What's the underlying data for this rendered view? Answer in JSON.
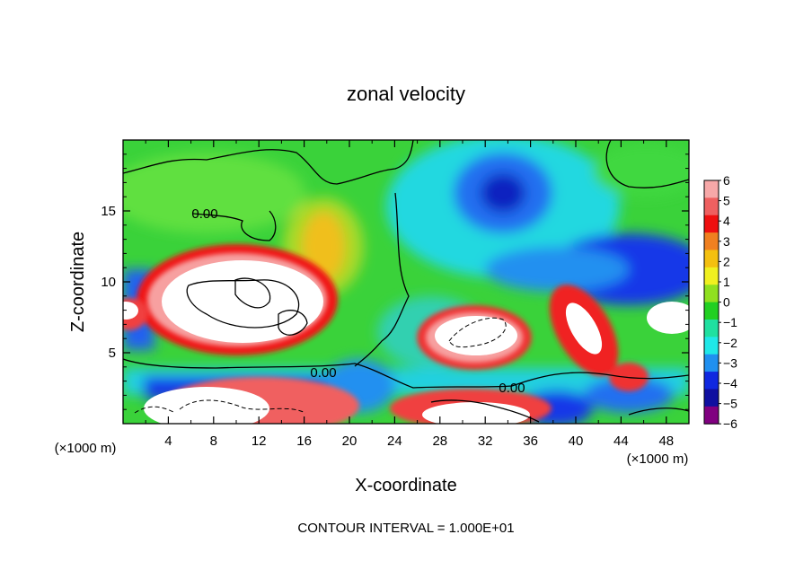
{
  "chart_data": {
    "type": "heatmap",
    "title": "zonal velocity",
    "xlabel": "X-coordinate",
    "ylabel": "Z-coordinate",
    "x_unit_left": "(×1000 m)",
    "x_unit_right": "(×1000 m)",
    "footer": "CONTOUR INTERVAL = 1.000E+01",
    "xlim": [
      0,
      50
    ],
    "ylim": [
      0,
      20
    ],
    "x_ticks": [
      4,
      8,
      12,
      16,
      20,
      24,
      28,
      32,
      36,
      40,
      44,
      48
    ],
    "x_tick_labels": [
      "4",
      "8",
      "12",
      "16",
      "20",
      "24",
      "28",
      "32",
      "36",
      "40",
      "44",
      "48"
    ],
    "y_ticks": [
      5,
      10,
      15
    ],
    "y_tick_labels": [
      "5",
      "10",
      "15"
    ],
    "contour_labels": [
      {
        "text": "0.00",
        "x": 7.5,
        "y": 14.8
      },
      {
        "text": "0.00",
        "x": 18,
        "y": 3.6
      },
      {
        "text": "0.00",
        "x": 34,
        "y": 2.7
      }
    ],
    "colorbar": {
      "levels": [
        6,
        5,
        4,
        3,
        2,
        1,
        0,
        -1,
        -2,
        -3,
        -4,
        -5,
        -6
      ],
      "level_labels": [
        "6",
        "5",
        "4",
        "3",
        "2",
        "1",
        "0",
        "−1",
        "−2",
        "−3",
        "−4",
        "−5",
        "−6"
      ],
      "colors": [
        "#f7a8a8",
        "#ef6060",
        "#ef1010",
        "#f08020",
        "#f4c010",
        "#f0f020",
        "#90e020",
        "#22d022",
        "#20e0a0",
        "#20e8e8",
        "#2090f0",
        "#1028e0",
        "#1010a0",
        "#800080"
      ]
    },
    "regions_above_range_white": [
      {
        "cx": 10.5,
        "cy": 9.0,
        "rx": 7.0,
        "ry": 3.8
      },
      {
        "cx": 32.0,
        "cy": 6.3,
        "rx": 3.8,
        "ry": 2.0
      },
      {
        "cx": 41.0,
        "cy": 6.8,
        "rx": 1.6,
        "ry": 2.8
      },
      {
        "cx": 48.5,
        "cy": 7.5,
        "rx": 2.0,
        "ry": 1.6
      },
      {
        "cx": 9.5,
        "cy": 1.2,
        "rx": 5.0,
        "ry": 1.7
      },
      {
        "cx": 1.0,
        "cy": 7.8,
        "rx": 1.2,
        "ry": 0.9
      },
      {
        "cx": 31.5,
        "cy": 1.2,
        "rx": 5.0,
        "ry": 1.1
      }
    ]
  }
}
